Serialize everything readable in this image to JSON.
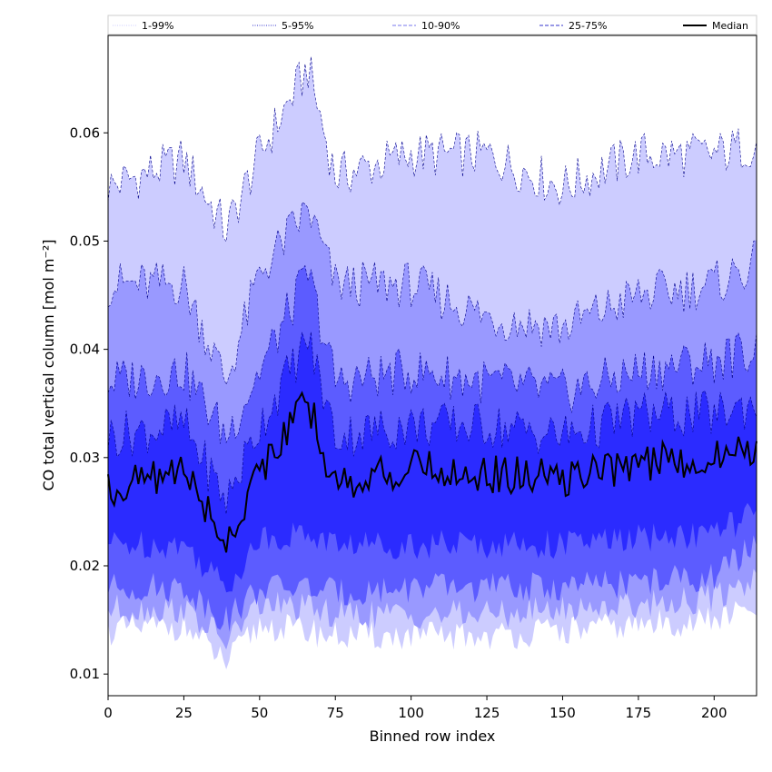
{
  "chart_data": {
    "type": "area",
    "title": "",
    "xlabel": "Binned row index",
    "ylabel": "CO total vertical column [mol m⁻²]",
    "xlim": [
      0,
      214
    ],
    "ylim": [
      0.008,
      0.069
    ],
    "x_ticks": [
      0,
      25,
      50,
      75,
      100,
      125,
      150,
      175,
      200
    ],
    "y_ticks": [
      0.01,
      0.02,
      0.03,
      0.04,
      0.05,
      0.06
    ],
    "y_tick_labels": [
      "0.01",
      "0.02",
      "0.03",
      "0.04",
      "0.05",
      "0.06"
    ],
    "grid": false,
    "legend_position": "top, spanning full width",
    "legend": [
      {
        "label": "1-99%",
        "style": "dotted",
        "line_color": "#ccccff"
      },
      {
        "label": "5-95%",
        "style": "dotted",
        "line_color": "#3333cc"
      },
      {
        "label": "10-90%",
        "style": "dashed",
        "line_color": "#7777ee"
      },
      {
        "label": "25-75%",
        "style": "dashed",
        "line_color": "#3333cc"
      },
      {
        "label": "Median",
        "style": "solid",
        "line_color": "#000000"
      }
    ],
    "colors": {
      "band_1_99": "#ccccff",
      "band_5_95": "#9999ff",
      "band_10_90": "#5c5cff",
      "band_25_75": "#2b2bff",
      "band_outline": "#00008b",
      "median": "#000000"
    },
    "series": [
      {
        "name": "1-99%",
        "kind": "band",
        "x": [
          0,
          25,
          39,
          50,
          66,
          75,
          100,
          125,
          150,
          175,
          200,
          214
        ],
        "upper": [
          0.055,
          0.0575,
          0.051,
          0.058,
          0.066,
          0.056,
          0.058,
          0.058,
          0.055,
          0.058,
          0.058,
          0.059
        ],
        "lower": [
          0.014,
          0.0145,
          0.011,
          0.0145,
          0.014,
          0.0135,
          0.0135,
          0.0135,
          0.014,
          0.0145,
          0.015,
          0.016
        ]
      },
      {
        "name": "5-95%",
        "kind": "band",
        "x": [
          0,
          25,
          39,
          50,
          66,
          75,
          100,
          125,
          150,
          175,
          200,
          214
        ],
        "upper": [
          0.046,
          0.046,
          0.037,
          0.047,
          0.053,
          0.046,
          0.046,
          0.043,
          0.042,
          0.045,
          0.046,
          0.048
        ],
        "lower": [
          0.016,
          0.016,
          0.013,
          0.0165,
          0.016,
          0.0155,
          0.0155,
          0.0155,
          0.016,
          0.0165,
          0.017,
          0.019
        ]
      },
      {
        "name": "10-90%",
        "kind": "band",
        "x": [
          0,
          25,
          39,
          50,
          66,
          75,
          100,
          125,
          150,
          175,
          200,
          214
        ],
        "upper": [
          0.037,
          0.038,
          0.032,
          0.038,
          0.047,
          0.037,
          0.038,
          0.037,
          0.036,
          0.038,
          0.039,
          0.04
        ],
        "lower": [
          0.018,
          0.018,
          0.015,
          0.018,
          0.018,
          0.0175,
          0.018,
          0.018,
          0.018,
          0.0185,
          0.019,
          0.022
        ]
      },
      {
        "name": "25-75%",
        "kind": "band",
        "x": [
          0,
          25,
          39,
          50,
          66,
          75,
          100,
          125,
          150,
          175,
          200,
          214
        ],
        "upper": [
          0.032,
          0.033,
          0.026,
          0.033,
          0.041,
          0.032,
          0.033,
          0.033,
          0.032,
          0.034,
          0.034,
          0.035
        ],
        "lower": [
          0.022,
          0.022,
          0.018,
          0.0225,
          0.023,
          0.022,
          0.022,
          0.022,
          0.022,
          0.0225,
          0.023,
          0.025
        ]
      },
      {
        "name": "Median",
        "kind": "line",
        "x": [
          0,
          25,
          39,
          50,
          66,
          75,
          100,
          125,
          150,
          175,
          200,
          214
        ],
        "values": [
          0.027,
          0.029,
          0.022,
          0.029,
          0.035,
          0.0275,
          0.029,
          0.0285,
          0.028,
          0.0295,
          0.03,
          0.031
        ]
      }
    ]
  }
}
